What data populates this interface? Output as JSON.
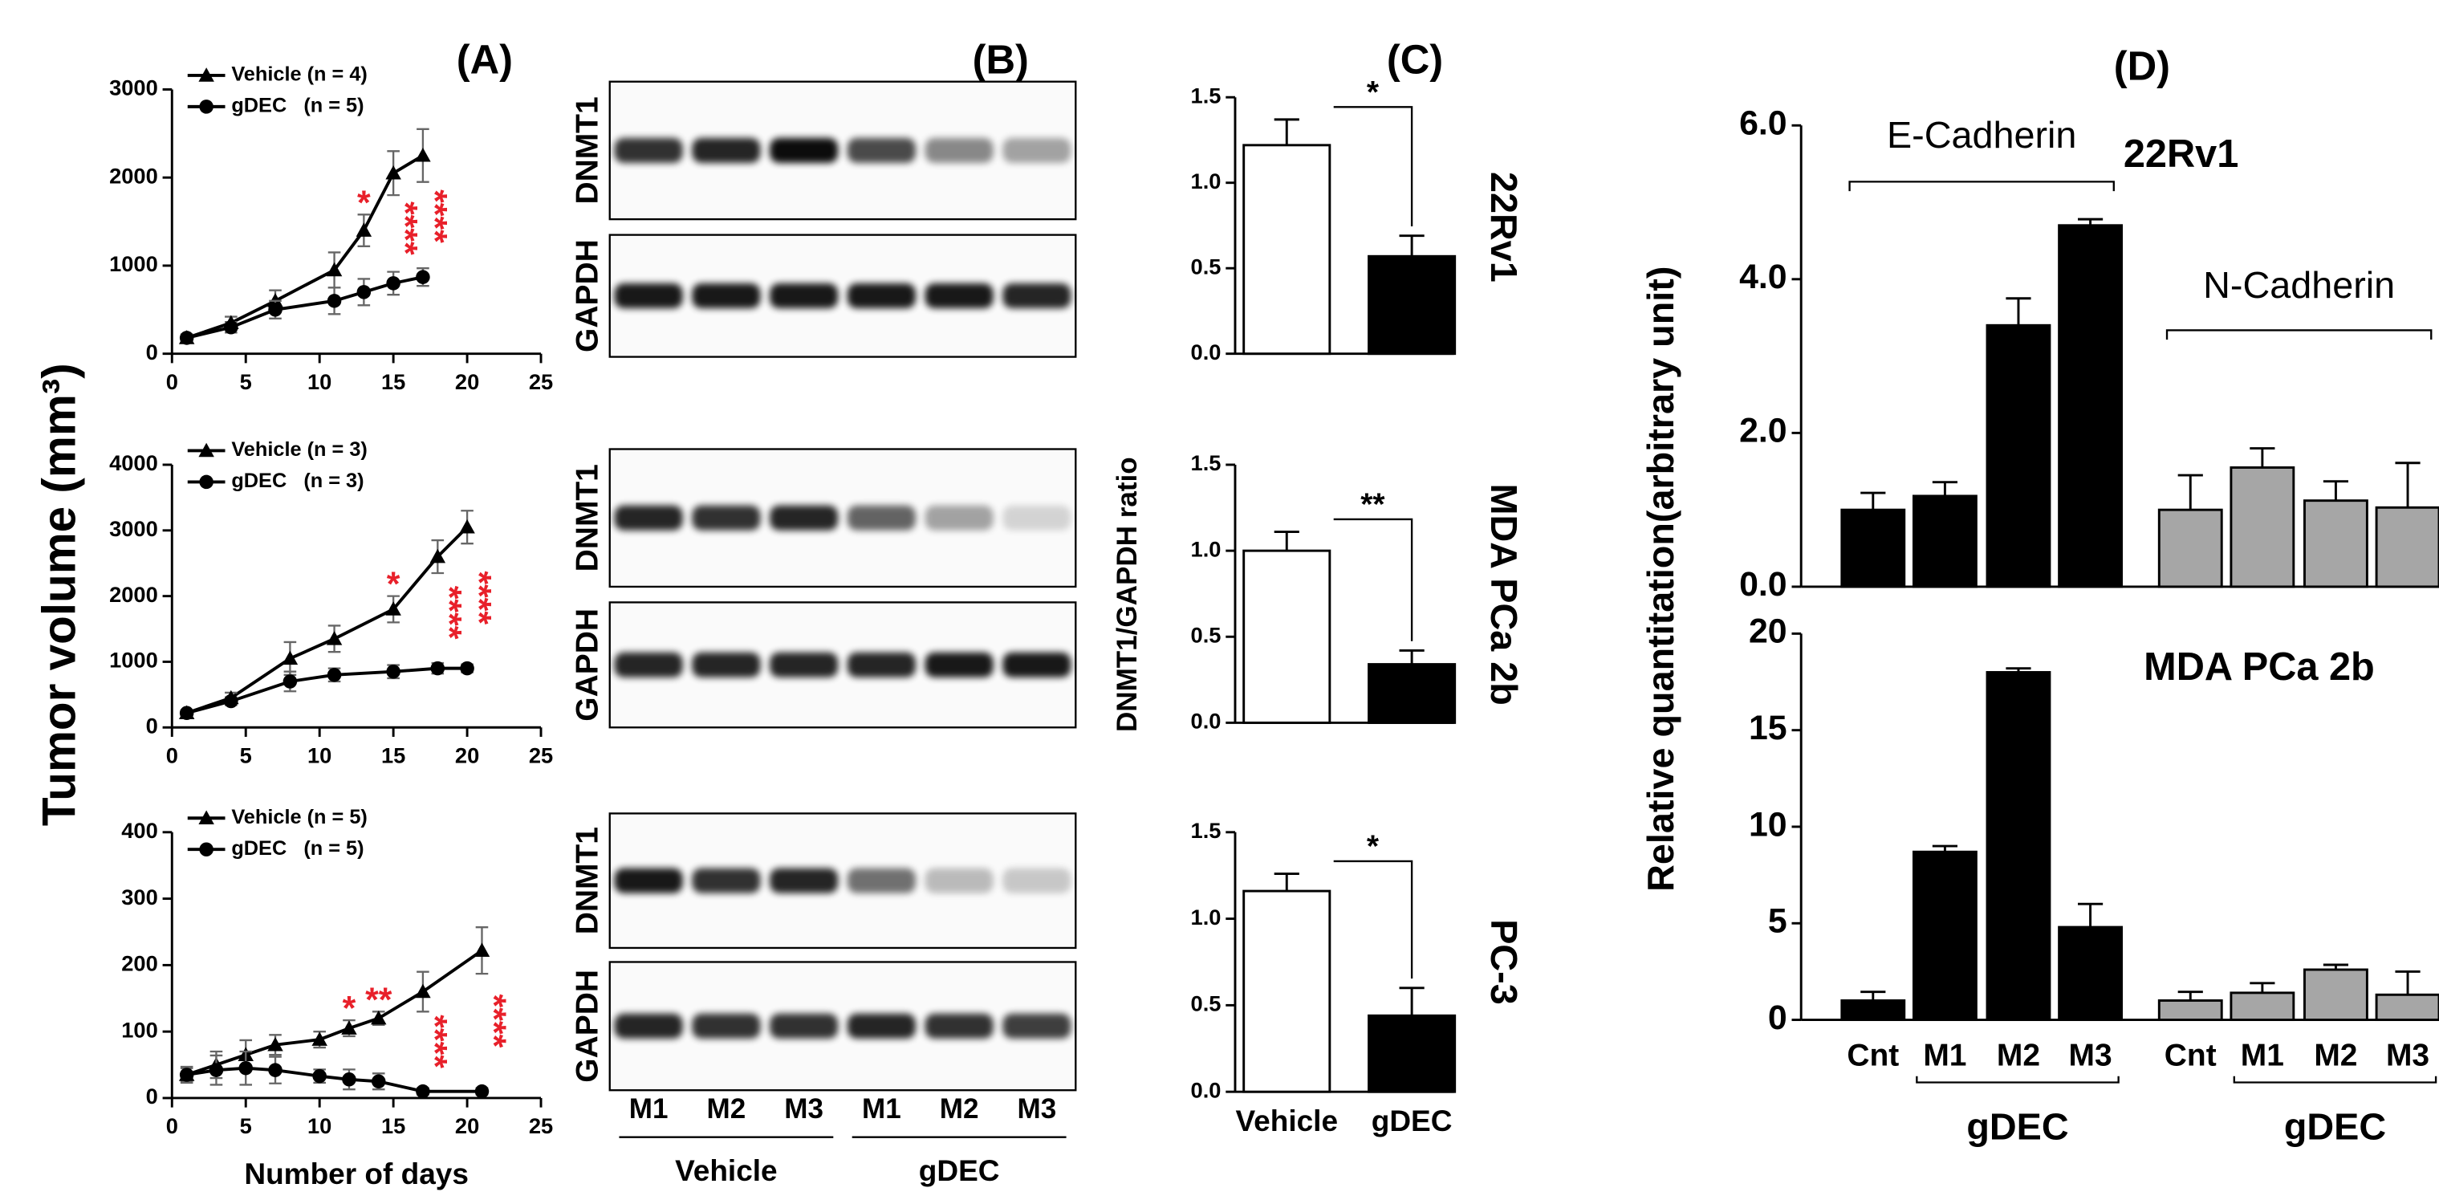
{
  "panel_labels": [
    "(A)",
    "(B)",
    "(C)",
    "(D)"
  ],
  "blots": {
    "lanes": [
      "M1",
      "M2",
      "M3",
      "M1",
      "M2",
      "M3"
    ],
    "groups": [
      "Vehicle",
      "gDEC"
    ],
    "sets": [
      {
        "bands": [
          {
            "label": "DNMT1",
            "intensity": [
              0.8,
              0.85,
              0.95,
              0.7,
              0.45,
              0.35
            ]
          },
          {
            "label": "GAPDH",
            "intensity": [
              0.9,
              0.9,
              0.9,
              0.9,
              0.9,
              0.85
            ]
          }
        ]
      },
      {
        "bands": [
          {
            "label": "DNMT1",
            "intensity": [
              0.85,
              0.8,
              0.85,
              0.6,
              0.35,
              0.15
            ]
          },
          {
            "label": "GAPDH",
            "intensity": [
              0.85,
              0.85,
              0.85,
              0.85,
              0.9,
              0.9
            ]
          }
        ]
      },
      {
        "bands": [
          {
            "label": "DNMT1",
            "intensity": [
              0.9,
              0.8,
              0.85,
              0.55,
              0.25,
              0.2
            ]
          },
          {
            "label": "GAPDH",
            "intensity": [
              0.85,
              0.8,
              0.8,
              0.85,
              0.8,
              0.75
            ]
          }
        ]
      }
    ]
  },
  "chart_data": [
    {
      "type": "line",
      "xlim": [
        0,
        25
      ],
      "xticks": [
        0,
        5,
        10,
        15,
        20,
        25
      ],
      "ylim": [
        0,
        3000
      ],
      "yticks": [
        0,
        1000,
        2000,
        3000
      ],
      "series": [
        {
          "name": "Vehicle (n = 4)",
          "color": "#000000",
          "marker": "triangle",
          "x": [
            1,
            4,
            7,
            11,
            13,
            15,
            17
          ],
          "values": [
            180,
            350,
            600,
            950,
            1400,
            2050,
            2250
          ],
          "errors": [
            40,
            70,
            120,
            200,
            180,
            250,
            300
          ]
        },
        {
          "name": "gDEC   (n = 5)",
          "color": "#000000",
          "marker": "circle",
          "x": [
            1,
            4,
            7,
            11,
            13,
            15,
            17
          ],
          "values": [
            180,
            300,
            500,
            600,
            700,
            800,
            870
          ],
          "errors": [
            30,
            60,
            100,
            150,
            150,
            130,
            100
          ]
        }
      ],
      "annotations": [
        {
          "text": "*",
          "x": 13
        },
        {
          "text": "****",
          "x": 15,
          "vertical": true
        },
        {
          "text": "****",
          "x": 17,
          "vertical": true
        }
      ]
    },
    {
      "type": "line",
      "xlim": [
        0,
        25
      ],
      "xticks": [
        0,
        5,
        10,
        15,
        20,
        25
      ],
      "ylim": [
        0,
        4000
      ],
      "yticks": [
        0,
        1000,
        2000,
        3000,
        4000
      ],
      "ylabel": "Tumor volume (mm³)",
      "series": [
        {
          "name": "Vehicle (n = 3)",
          "color": "#000000",
          "marker": "triangle",
          "x": [
            1,
            4,
            8,
            11,
            15,
            18,
            20
          ],
          "values": [
            220,
            450,
            1050,
            1350,
            1800,
            2600,
            3050
          ],
          "errors": [
            40,
            80,
            250,
            200,
            200,
            250,
            250
          ]
        },
        {
          "name": "gDEC   (n = 3)",
          "color": "#000000",
          "marker": "circle",
          "x": [
            1,
            4,
            8,
            11,
            15,
            18,
            20
          ],
          "values": [
            220,
            400,
            700,
            800,
            850,
            900,
            900
          ],
          "errors": [
            40,
            60,
            150,
            100,
            100,
            80,
            60
          ]
        }
      ],
      "annotations": [
        {
          "text": "*",
          "x": 15
        },
        {
          "text": "****",
          "x": 18,
          "vertical": true
        },
        {
          "text": "****",
          "x": 20,
          "vertical": true
        }
      ]
    },
    {
      "type": "line",
      "xlim": [
        0,
        25
      ],
      "xticks": [
        0,
        5,
        10,
        15,
        20,
        25
      ],
      "ylim": [
        0,
        400
      ],
      "yticks": [
        0,
        100,
        200,
        300,
        400
      ],
      "xlabel": "Number of days",
      "series": [
        {
          "name": "Vehicle (n = 5)",
          "color": "#000000",
          "marker": "triangle",
          "x": [
            1,
            3,
            5,
            7,
            10,
            12,
            14,
            17,
            21
          ],
          "values": [
            35,
            50,
            65,
            80,
            88,
            105,
            120,
            160,
            222
          ],
          "errors": [
            10,
            20,
            22,
            15,
            12,
            12,
            10,
            30,
            35
          ]
        },
        {
          "name": "gDEC   (n = 5)",
          "color": "#000000",
          "marker": "circle",
          "x": [
            1,
            3,
            5,
            7,
            10,
            12,
            14,
            17,
            21
          ],
          "values": [
            35,
            42,
            45,
            42,
            33,
            28,
            25,
            10,
            10
          ],
          "errors": [
            12,
            22,
            25,
            20,
            10,
            15,
            12,
            5,
            5
          ]
        }
      ],
      "annotations": [
        {
          "text": "*",
          "x": 12
        },
        {
          "text": "**",
          "x": 14
        },
        {
          "text": "****",
          "x": 17,
          "vertical": true
        },
        {
          "text": "****",
          "x": 21,
          "vertical": true
        }
      ]
    },
    {
      "type": "bar",
      "ylim": [
        0,
        1.5
      ],
      "yticks": [
        {
          "value": 0,
          "label": "0.0"
        },
        {
          "value": 0.5,
          "label": "0.5"
        },
        {
          "value": 1,
          "label": "1.0"
        },
        {
          "value": 1.5,
          "label": "1.5"
        }
      ],
      "categories": [
        null,
        null
      ],
      "values": [
        1.22,
        0.57
      ],
      "errors": [
        0.15,
        0.12
      ],
      "colors": [
        "#ffffff",
        "#000000"
      ],
      "annotation": "*",
      "label": "22Rv1"
    },
    {
      "type": "bar",
      "ylim": [
        0,
        1.5
      ],
      "yticks": [
        {
          "value": 0,
          "label": "0.0"
        },
        {
          "value": 0.5,
          "label": "0.5"
        },
        {
          "value": 1,
          "label": "1.0"
        },
        {
          "value": 1.5,
          "label": "1.5"
        }
      ],
      "ylabel": "DNMT1/GAPDH ratio",
      "categories": [
        null,
        null
      ],
      "values": [
        1.0,
        0.34
      ],
      "errors": [
        0.11,
        0.08
      ],
      "colors": [
        "#ffffff",
        "#000000"
      ],
      "annotation": "**",
      "label": "MDA PCa 2b"
    },
    {
      "type": "bar",
      "ylim": [
        0,
        1.5
      ],
      "yticks": [
        {
          "value": 0,
          "label": "0.0"
        },
        {
          "value": 0.5,
          "label": "0.5"
        },
        {
          "value": 1,
          "label": "1.0"
        },
        {
          "value": 1.5,
          "label": "1.5"
        }
      ],
      "categories": [
        "Vehicle",
        "gDEC"
      ],
      "values": [
        1.16,
        0.44
      ],
      "errors": [
        0.1,
        0.16
      ],
      "colors": [
        "#ffffff",
        "#000000"
      ],
      "annotation": "*",
      "label": "PC-3"
    },
    {
      "type": "bar",
      "title": "22Rv1",
      "ylabel": "Relative quantitation(arbitrary unit)",
      "ylim": [
        0,
        6
      ],
      "yticks": [
        {
          "value": 0,
          "label": "0.0"
        },
        {
          "value": 2,
          "label": "2.0"
        },
        {
          "value": 4,
          "label": "4.0"
        },
        {
          "value": 6,
          "label": "6.0"
        }
      ],
      "series": [
        {
          "name": "E-Cadherin",
          "color": "#000000",
          "categories": [
            null,
            null,
            null,
            null
          ],
          "values": [
            1.0,
            1.18,
            3.4,
            4.7
          ],
          "errors": [
            0.22,
            0.18,
            0.35,
            0.08
          ]
        },
        {
          "name": "N-Cadherin",
          "color": "#a6a6a6",
          "categories": [
            null,
            null,
            null,
            null
          ],
          "values": [
            1.0,
            1.55,
            1.12,
            1.03
          ],
          "errors": [
            0.45,
            0.25,
            0.25,
            0.58
          ]
        }
      ]
    },
    {
      "type": "bar",
      "title": "MDA PCa 2b",
      "ylim": [
        0,
        20
      ],
      "yticks": [
        0,
        5,
        10,
        15,
        20
      ],
      "series": [
        {
          "color": "#000000",
          "categories": [
            "Cnt",
            "M1",
            "M2",
            "M3"
          ],
          "group": "gDEC",
          "values": [
            1.0,
            8.7,
            18.0,
            4.8
          ],
          "errors": [
            0.45,
            0.3,
            0.2,
            1.2
          ]
        },
        {
          "color": "#a6a6a6",
          "categories": [
            "Cnt",
            "M1",
            "M2",
            "M3"
          ],
          "group": "gDEC",
          "values": [
            1.0,
            1.4,
            2.6,
            1.3
          ],
          "errors": [
            0.45,
            0.5,
            0.25,
            1.2
          ]
        }
      ]
    }
  ]
}
